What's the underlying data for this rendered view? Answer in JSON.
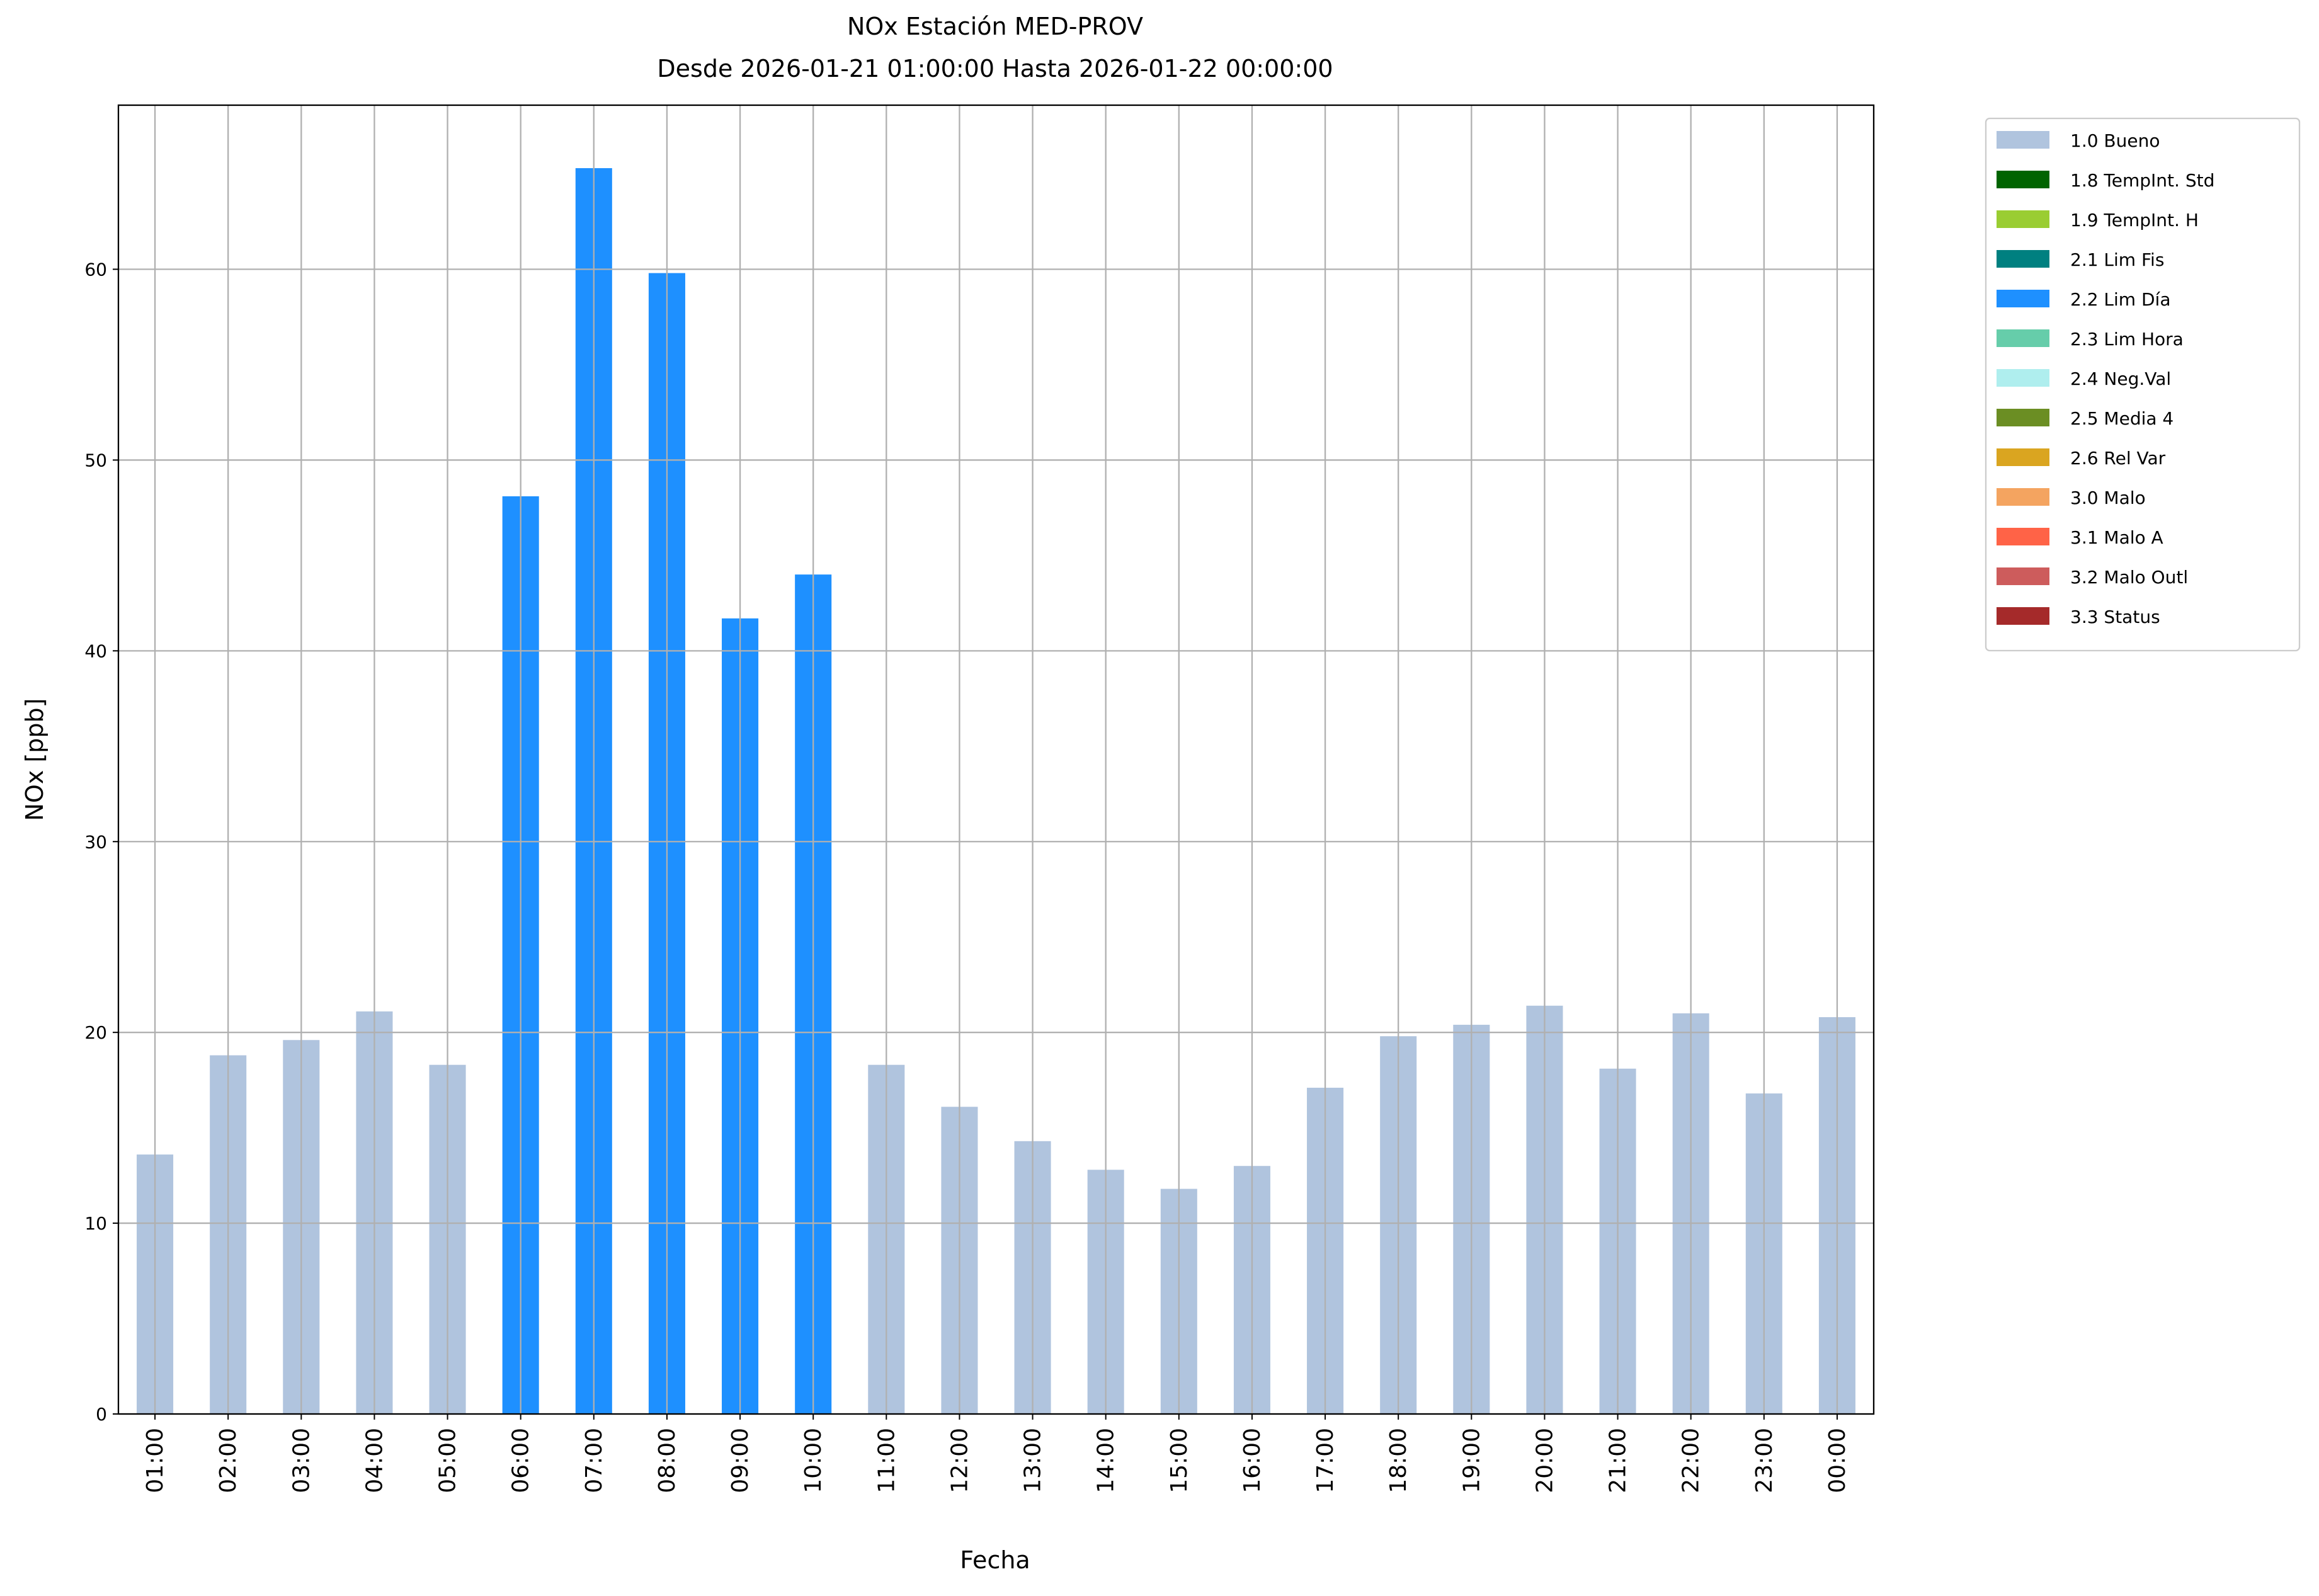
{
  "chart_data": {
    "type": "bar",
    "stacked": true,
    "title": "NOx Estación MED-PROV",
    "subtitle": "Desde 2026-01-21 01:00:00 Hasta 2026-01-22 00:00:00",
    "x_label": "Fecha",
    "y_label": "NOx [ppb]",
    "categories": [
      "01:00",
      "02:00",
      "03:00",
      "04:00",
      "05:00",
      "06:00",
      "07:00",
      "08:00",
      "09:00",
      "10:00",
      "11:00",
      "12:00",
      "13:00",
      "14:00",
      "15:00",
      "16:00",
      "17:00",
      "18:00",
      "19:00",
      "20:00",
      "21:00",
      "22:00",
      "23:00",
      "00:00"
    ],
    "series": [
      {
        "name": "1.0 Bueno",
        "color": "#b0c4de",
        "values": [
          13.6,
          18.8,
          19.6,
          21.1,
          18.3,
          null,
          null,
          null,
          null,
          null,
          18.3,
          16.1,
          14.3,
          12.8,
          11.8,
          13.0,
          17.1,
          19.8,
          20.4,
          21.4,
          18.1,
          21.0,
          16.8,
          20.8
        ]
      },
      {
        "name": "1.8 TempInt. Std",
        "color": "#006400",
        "values": [
          null,
          null,
          null,
          null,
          null,
          null,
          null,
          null,
          null,
          null,
          null,
          null,
          null,
          null,
          null,
          null,
          null,
          null,
          null,
          null,
          null,
          null,
          null,
          null
        ]
      },
      {
        "name": "1.9 TempInt. H",
        "color": "#9acd32",
        "values": [
          null,
          null,
          null,
          null,
          null,
          null,
          null,
          null,
          null,
          null,
          null,
          null,
          null,
          null,
          null,
          null,
          null,
          null,
          null,
          null,
          null,
          null,
          null,
          null
        ]
      },
      {
        "name": "2.1 Lim Fis",
        "color": "#008080",
        "values": [
          null,
          null,
          null,
          null,
          null,
          null,
          null,
          null,
          null,
          null,
          null,
          null,
          null,
          null,
          null,
          null,
          null,
          null,
          null,
          null,
          null,
          null,
          null,
          null
        ]
      },
      {
        "name": "2.2 Lim Día",
        "color": "#1e90ff",
        "values": [
          null,
          null,
          null,
          null,
          null,
          48.1,
          65.3,
          59.8,
          41.7,
          44.0,
          null,
          null,
          null,
          null,
          null,
          null,
          null,
          null,
          null,
          null,
          null,
          null,
          null,
          null
        ]
      },
      {
        "name": "2.3 Lim Hora",
        "color": "#66cdaa",
        "values": [
          null,
          null,
          null,
          null,
          null,
          null,
          null,
          null,
          null,
          null,
          null,
          null,
          null,
          null,
          null,
          null,
          null,
          null,
          null,
          null,
          null,
          null,
          null,
          null
        ]
      },
      {
        "name": "2.4 Neg.Val",
        "color": "#afeeee",
        "values": [
          null,
          null,
          null,
          null,
          null,
          null,
          null,
          null,
          null,
          null,
          null,
          null,
          null,
          null,
          null,
          null,
          null,
          null,
          null,
          null,
          null,
          null,
          null,
          null
        ]
      },
      {
        "name": "2.5 Media 4",
        "color": "#6b8e23",
        "values": [
          null,
          null,
          null,
          null,
          null,
          null,
          null,
          null,
          null,
          null,
          null,
          null,
          null,
          null,
          null,
          null,
          null,
          null,
          null,
          null,
          null,
          null,
          null,
          null
        ]
      },
      {
        "name": "2.6 Rel Var",
        "color": "#daa520",
        "values": [
          null,
          null,
          null,
          null,
          null,
          null,
          null,
          null,
          null,
          null,
          null,
          null,
          null,
          null,
          null,
          null,
          null,
          null,
          null,
          null,
          null,
          null,
          null,
          null
        ]
      },
      {
        "name": "3.0 Malo",
        "color": "#f4a460",
        "values": [
          null,
          null,
          null,
          null,
          null,
          null,
          null,
          null,
          null,
          null,
          null,
          null,
          null,
          null,
          null,
          null,
          null,
          null,
          null,
          null,
          null,
          null,
          null,
          null
        ]
      },
      {
        "name": "3.1 Malo A",
        "color": "#ff6347",
        "values": [
          null,
          null,
          null,
          null,
          null,
          null,
          null,
          null,
          null,
          null,
          null,
          null,
          null,
          null,
          null,
          null,
          null,
          null,
          null,
          null,
          null,
          null,
          null,
          null
        ]
      },
      {
        "name": "3.2 Malo Outl",
        "color": "#cd5c5c",
        "values": [
          null,
          null,
          null,
          null,
          null,
          null,
          null,
          null,
          null,
          null,
          null,
          null,
          null,
          null,
          null,
          null,
          null,
          null,
          null,
          null,
          null,
          null,
          null,
          null
        ]
      },
      {
        "name": "3.3 Status",
        "color": "#a52a2a",
        "values": [
          null,
          null,
          null,
          null,
          null,
          null,
          null,
          null,
          null,
          null,
          null,
          null,
          null,
          null,
          null,
          null,
          null,
          null,
          null,
          null,
          null,
          null,
          null,
          null
        ]
      }
    ],
    "ylim": [
      0,
      68.6
    ],
    "yticks": [
      0,
      10,
      20,
      30,
      40,
      50,
      60
    ],
    "grid": true,
    "legend": "outside-right"
  }
}
